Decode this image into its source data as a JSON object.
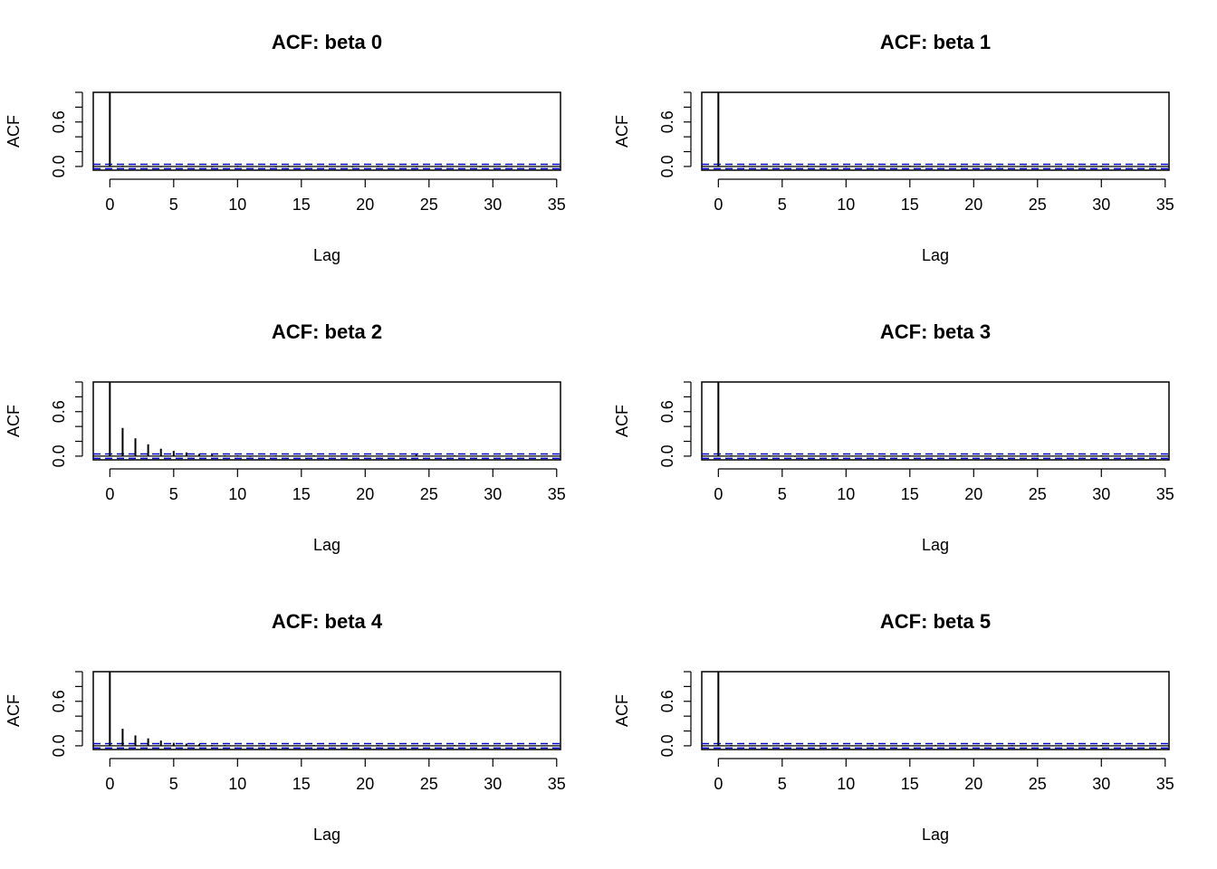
{
  "chart_data": [
    {
      "type": "bar",
      "title": "ACF: beta 0",
      "xlabel": "Lag",
      "ylabel": "ACF",
      "xlim": [
        -1.3,
        35.3
      ],
      "ylim": [
        -0.05,
        1.0
      ],
      "xticks": [
        "0",
        "5",
        "10",
        "15",
        "20",
        "25",
        "30",
        "35"
      ],
      "yticks": [
        "0.0",
        "0.6"
      ],
      "ci_bound": 0.03,
      "lags": [
        0,
        1,
        2,
        3,
        4,
        5,
        6,
        7,
        8,
        9,
        10,
        11,
        12,
        13,
        14,
        15,
        16,
        17,
        18,
        19,
        20,
        21,
        22,
        23,
        24,
        25,
        26,
        27,
        28,
        29,
        30,
        31,
        32,
        33,
        34,
        35
      ],
      "values": [
        1.0,
        0.01,
        0.0,
        0.01,
        -0.01,
        0.0,
        0.01,
        0.0,
        -0.01,
        0.0,
        0.01,
        0.0,
        0.0,
        -0.01,
        0.01,
        0.0,
        0.0,
        0.01,
        0.0,
        -0.01,
        0.0,
        0.01,
        0.0,
        0.0,
        -0.01,
        0.0,
        0.01,
        0.0,
        0.0,
        -0.01,
        0.0,
        0.01,
        0.0,
        0.0,
        0.0,
        0.0
      ]
    },
    {
      "type": "bar",
      "title": "ACF: beta 1",
      "xlabel": "Lag",
      "ylabel": "ACF",
      "xlim": [
        -1.3,
        35.3
      ],
      "ylim": [
        -0.05,
        1.0
      ],
      "xticks": [
        "0",
        "5",
        "10",
        "15",
        "20",
        "25",
        "30",
        "35"
      ],
      "yticks": [
        "0.0",
        "0.6"
      ],
      "ci_bound": 0.03,
      "lags": [
        0,
        1,
        2,
        3,
        4,
        5,
        6,
        7,
        8,
        9,
        10,
        11,
        12,
        13,
        14,
        15,
        16,
        17,
        18,
        19,
        20,
        21,
        22,
        23,
        24,
        25,
        26,
        27,
        28,
        29,
        30,
        31,
        32,
        33,
        34,
        35
      ],
      "values": [
        1.0,
        0.0,
        0.01,
        0.0,
        0.0,
        -0.01,
        0.0,
        0.01,
        0.0,
        0.0,
        -0.01,
        0.0,
        0.01,
        0.0,
        0.0,
        0.01,
        -0.01,
        0.0,
        0.0,
        0.01,
        0.0,
        0.0,
        -0.01,
        0.0,
        0.01,
        0.0,
        0.0,
        0.0,
        -0.01,
        0.0,
        0.01,
        0.0,
        0.0,
        0.0,
        0.01,
        0.0
      ]
    },
    {
      "type": "bar",
      "title": "ACF: beta 2",
      "xlabel": "Lag",
      "ylabel": "ACF",
      "xlim": [
        -1.3,
        35.3
      ],
      "ylim": [
        -0.05,
        1.0
      ],
      "xticks": [
        "0",
        "5",
        "10",
        "15",
        "20",
        "25",
        "30",
        "35"
      ],
      "yticks": [
        "0.0",
        "0.6"
      ],
      "ci_bound": 0.03,
      "lags": [
        0,
        1,
        2,
        3,
        4,
        5,
        6,
        7,
        8,
        9,
        10,
        11,
        12,
        13,
        14,
        15,
        16,
        17,
        18,
        19,
        20,
        21,
        22,
        23,
        24,
        25,
        26,
        27,
        28,
        29,
        30,
        31,
        32,
        33,
        34,
        35
      ],
      "values": [
        1.0,
        0.38,
        0.24,
        0.16,
        0.1,
        0.07,
        0.05,
        0.03,
        0.02,
        0.01,
        0.01,
        -0.01,
        0.0,
        0.01,
        0.0,
        0.0,
        0.01,
        0.0,
        0.0,
        0.0,
        0.01,
        0.0,
        0.0,
        0.0,
        0.02,
        0.0,
        0.0,
        0.01,
        0.0,
        0.0,
        0.0,
        0.0,
        0.0,
        0.0,
        0.0,
        0.0
      ]
    },
    {
      "type": "bar",
      "title": "ACF: beta 3",
      "xlabel": "Lag",
      "ylabel": "ACF",
      "xlim": [
        -1.3,
        35.3
      ],
      "ylim": [
        -0.05,
        1.0
      ],
      "xticks": [
        "0",
        "5",
        "10",
        "15",
        "20",
        "25",
        "30",
        "35"
      ],
      "yticks": [
        "0.0",
        "0.6"
      ],
      "ci_bound": 0.03,
      "lags": [
        0,
        1,
        2,
        3,
        4,
        5,
        6,
        7,
        8,
        9,
        10,
        11,
        12,
        13,
        14,
        15,
        16,
        17,
        18,
        19,
        20,
        21,
        22,
        23,
        24,
        25,
        26,
        27,
        28,
        29,
        30,
        31,
        32,
        33,
        34,
        35
      ],
      "values": [
        1.0,
        0.01,
        0.0,
        0.0,
        0.01,
        0.0,
        -0.01,
        0.0,
        0.0,
        0.01,
        0.0,
        0.0,
        0.0,
        -0.01,
        0.0,
        0.01,
        0.0,
        0.0,
        0.0,
        0.01,
        0.0,
        0.0,
        -0.01,
        0.0,
        0.0,
        0.01,
        0.0,
        0.0,
        0.0,
        0.0,
        0.01,
        0.0,
        0.0,
        0.0,
        0.0,
        0.0
      ]
    },
    {
      "type": "bar",
      "title": "ACF: beta 4",
      "xlabel": "Lag",
      "ylabel": "ACF",
      "xlim": [
        -1.3,
        35.3
      ],
      "ylim": [
        -0.05,
        1.0
      ],
      "xticks": [
        "0",
        "5",
        "10",
        "15",
        "20",
        "25",
        "30",
        "35"
      ],
      "yticks": [
        "0.0",
        "0.6"
      ],
      "ci_bound": 0.03,
      "lags": [
        0,
        1,
        2,
        3,
        4,
        5,
        6,
        7,
        8,
        9,
        10,
        11,
        12,
        13,
        14,
        15,
        16,
        17,
        18,
        19,
        20,
        21,
        22,
        23,
        24,
        25,
        26,
        27,
        28,
        29,
        30,
        31,
        32,
        33,
        34,
        35
      ],
      "values": [
        1.0,
        0.23,
        0.14,
        0.1,
        0.07,
        0.04,
        0.03,
        0.02,
        0.01,
        0.01,
        0.0,
        0.0,
        0.01,
        0.0,
        0.0,
        0.0,
        0.01,
        0.0,
        0.0,
        0.0,
        0.0,
        0.01,
        0.0,
        0.0,
        0.0,
        0.0,
        0.0,
        0.01,
        0.0,
        0.0,
        0.0,
        0.0,
        0.01,
        0.0,
        0.0,
        0.0
      ]
    },
    {
      "type": "bar",
      "title": "ACF: beta 5",
      "xlabel": "Lag",
      "ylabel": "ACF",
      "xlim": [
        -1.3,
        35.3
      ],
      "ylim": [
        -0.05,
        1.0
      ],
      "xticks": [
        "0",
        "5",
        "10",
        "15",
        "20",
        "25",
        "30",
        "35"
      ],
      "yticks": [
        "0.0",
        "0.6"
      ],
      "ci_bound": 0.03,
      "lags": [
        0,
        1,
        2,
        3,
        4,
        5,
        6,
        7,
        8,
        9,
        10,
        11,
        12,
        13,
        14,
        15,
        16,
        17,
        18,
        19,
        20,
        21,
        22,
        23,
        24,
        25,
        26,
        27,
        28,
        29,
        30,
        31,
        32,
        33,
        34,
        35
      ],
      "values": [
        1.0,
        0.01,
        0.0,
        0.0,
        0.0,
        0.01,
        0.0,
        0.0,
        -0.01,
        0.0,
        0.0,
        0.0,
        0.01,
        0.0,
        0.0,
        0.0,
        0.0,
        0.01,
        0.0,
        0.0,
        0.0,
        0.0,
        0.0,
        0.01,
        0.0,
        0.0,
        0.0,
        0.0,
        0.0,
        0.0,
        0.01,
        0.0,
        0.0,
        0.0,
        0.0,
        0.0
      ]
    }
  ],
  "colors": {
    "ci_line": "#0000cc",
    "acf_line": "#000000",
    "axis": "#000000"
  }
}
